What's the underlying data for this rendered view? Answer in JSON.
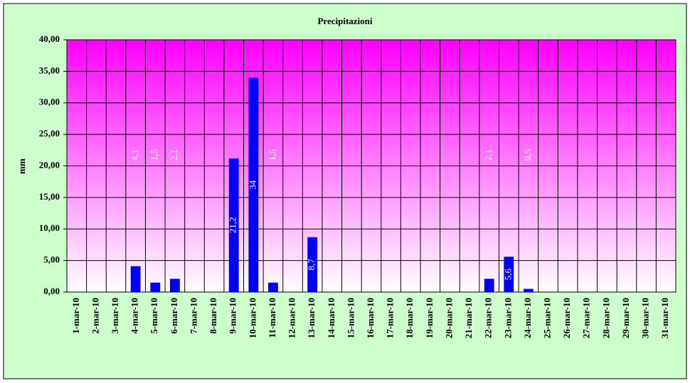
{
  "chart_data": {
    "type": "bar",
    "title": "Precipitazioni",
    "y_label": "mm",
    "categories": [
      "1-mar-10",
      "2-mar-10",
      "3-mar-10",
      "4-mar-10",
      "5-mar-10",
      "6-mar-10",
      "7-mar-10",
      "8-mar-10",
      "9-mar-10",
      "10-mar-10",
      "11-mar-10",
      "12-mar-10",
      "13-mar-10",
      "14-mar-10",
      "15-mar-10",
      "16-mar-10",
      "17-mar-10",
      "18-mar-10",
      "19-mar-10",
      "20-mar-10",
      "21-mar-10",
      "22-mar-10",
      "23-mar-10",
      "24-mar-10",
      "25-mar-10",
      "26-mar-10",
      "27-mar-10",
      "28-mar-10",
      "29-mar-10",
      "30-mar-10",
      "31-mar-10"
    ],
    "values": [
      0,
      0,
      0,
      4.1,
      1.5,
      2.1,
      0,
      0,
      21.2,
      34,
      1.5,
      0,
      8.7,
      0,
      0,
      0,
      0,
      0,
      0,
      0,
      0,
      2.1,
      5.6,
      0.5,
      0,
      0,
      0,
      0,
      0,
      0,
      0
    ],
    "value_labels": [
      null,
      null,
      null,
      "4,1",
      "1,5",
      "2,1",
      null,
      null,
      "21,2",
      "34",
      "1,5",
      null,
      "8,7",
      null,
      null,
      null,
      null,
      null,
      null,
      null,
      null,
      "2,1",
      "5,6",
      "0,5",
      null,
      null,
      null,
      null,
      null,
      null,
      null
    ],
    "color": "#0000ff",
    "ylim": [
      0,
      40
    ],
    "yticks": [
      {
        "value": 0,
        "label": "0,00"
      },
      {
        "value": 5,
        "label": "5,00"
      },
      {
        "value": 10,
        "label": "10,00"
      },
      {
        "value": 15,
        "label": "15,00"
      },
      {
        "value": 20,
        "label": "20,00"
      },
      {
        "value": 25,
        "label": "25,00"
      },
      {
        "value": 30,
        "label": "30,00"
      },
      {
        "value": 35,
        "label": "35,00"
      },
      {
        "value": 40,
        "label": "40,00"
      }
    ],
    "grid": true
  }
}
